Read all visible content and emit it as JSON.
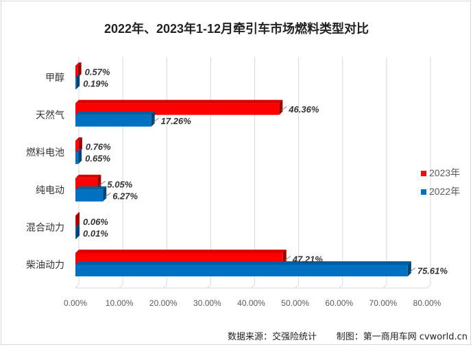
{
  "chart_data": {
    "type": "bar",
    "orientation": "horizontal",
    "title": "2022年、2023年1-12月牵引车市场燃料类型对比",
    "categories": [
      "甲醇",
      "天然气",
      "燃料电池",
      "纯电动",
      "混合动力",
      "柴油动力"
    ],
    "series": [
      {
        "name": "2023年",
        "color": "#ff0000",
        "values": [
          0.57,
          46.36,
          0.76,
          5.05,
          0.06,
          47.21
        ],
        "labels": [
          "0.57%",
          "46.36%",
          "0.76%",
          "5.05%",
          "0.06%",
          "47.21%"
        ]
      },
      {
        "name": "2022年",
        "color": "#0070c0",
        "values": [
          0.19,
          17.26,
          0.65,
          6.27,
          0.01,
          75.61
        ],
        "labels": [
          "0.19%",
          "17.26%",
          "0.65%",
          "6.27%",
          "0.01%",
          "75.61%"
        ]
      }
    ],
    "xlim": [
      0,
      80
    ],
    "x_ticks": [
      "0.00%",
      "10.00%",
      "20.00%",
      "30.00%",
      "40.00%",
      "50.00%",
      "60.00%",
      "70.00%",
      "80.00%"
    ],
    "grid": true,
    "legend_position": "right"
  },
  "footer": {
    "source": "数据来源：交强险统计",
    "credit": "制图：第一商用车网 cvworld.cn"
  }
}
